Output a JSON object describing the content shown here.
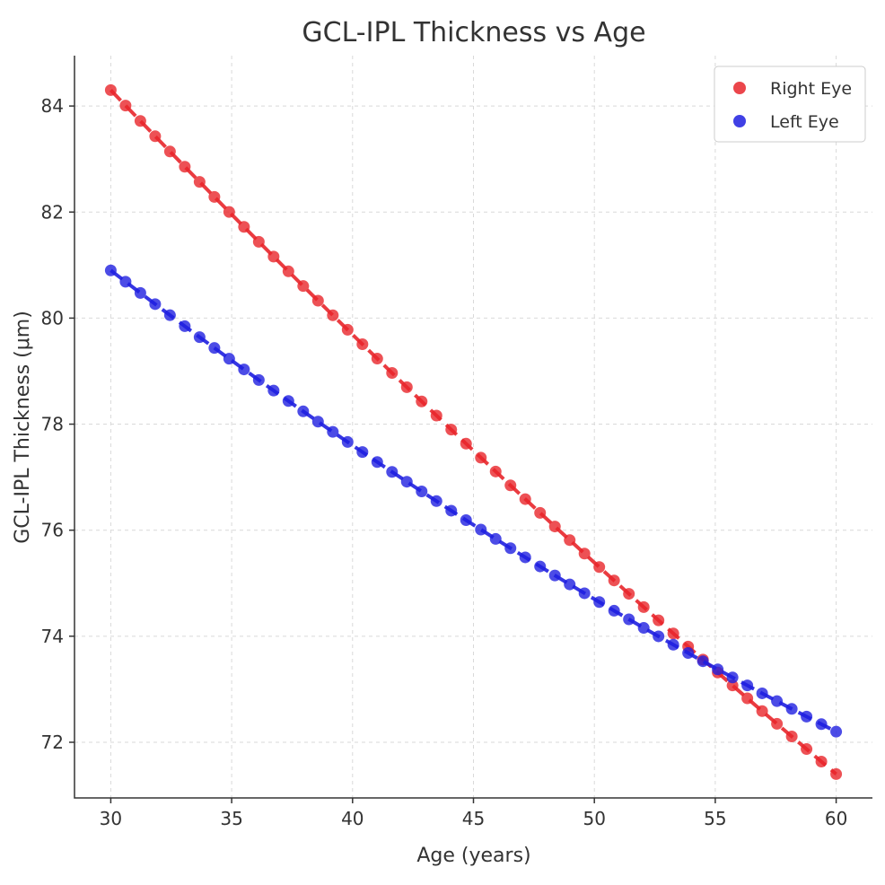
{
  "chart_data": {
    "type": "scatter",
    "title": "GCL-IPL Thickness vs Age",
    "xlabel": "Age (years)",
    "ylabel": "GCL-IPL Thickness (μm)",
    "xlim": [
      28.5,
      61.5
    ],
    "ylim": [
      70.95,
      84.95
    ],
    "xticks": [
      30,
      35,
      40,
      45,
      50,
      55,
      60
    ],
    "yticks": [
      72,
      74,
      76,
      78,
      80,
      82,
      84
    ],
    "grid": true,
    "legend_position": "top-right",
    "series": [
      {
        "name": "Right Eye",
        "color": "#e8262b",
        "marker": "circle",
        "trend_line": "dashed",
        "x_start": 30,
        "x_end": 60,
        "points": 50,
        "y_start": 84.3,
        "y_end": 71.4,
        "curvature": 0.35
      },
      {
        "name": "Left Eye",
        "color": "#1f1fe0",
        "marker": "circle",
        "trend_line": "dashed",
        "x_start": 30,
        "x_end": 60,
        "points": 50,
        "y_start": 80.9,
        "y_end": 72.2,
        "curvature": 0.45
      }
    ]
  }
}
